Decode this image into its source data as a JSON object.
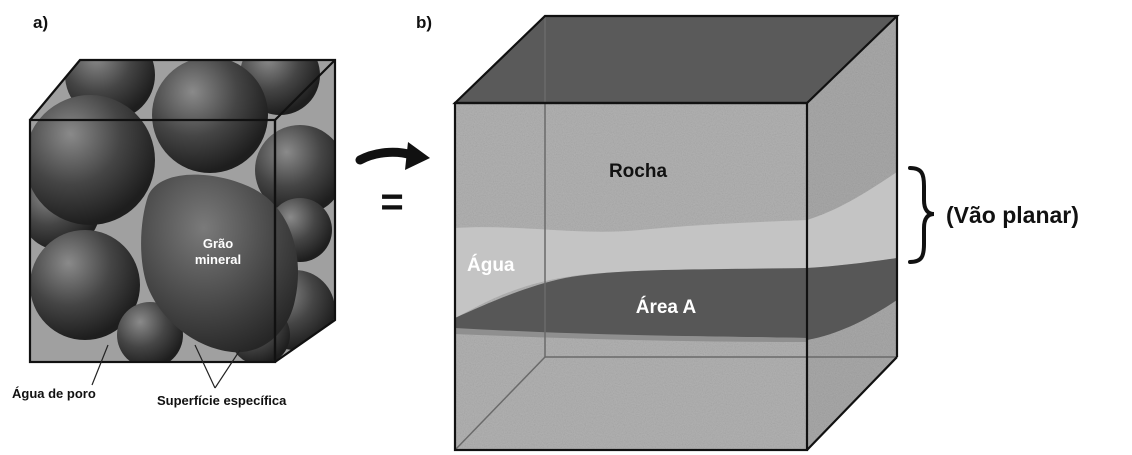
{
  "panel_a": {
    "label": "a)",
    "grain_label_line1": "Grão",
    "grain_label_line2": "mineral",
    "pore_water_label": "Água de poro",
    "specific_surface_label": "Superfície específica"
  },
  "panel_b": {
    "label": "b)",
    "rock_label": "Rocha",
    "water_label": "Água",
    "area_label": "Área A",
    "planar_gap_label": "(Vão planar)"
  },
  "transition": {
    "equals_symbol": "="
  },
  "colors": {
    "background": "#ffffff",
    "sphere_dark": "#3a3a3a",
    "rock_texture": "#b5b5b5",
    "water_band": "#c9c9c9",
    "area_dark": "#555555",
    "top_face": "#555555",
    "outline": "#111111"
  }
}
